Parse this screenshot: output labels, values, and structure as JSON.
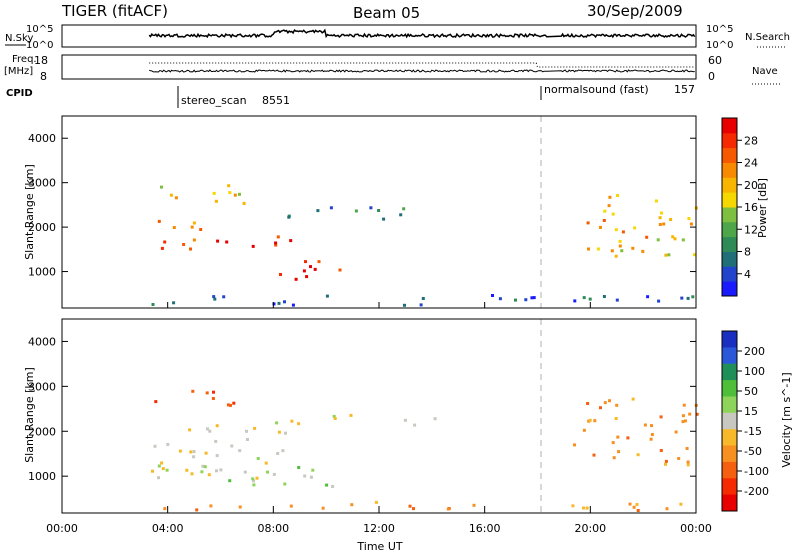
{
  "header": {
    "station": "TIGER (fitACF)",
    "beam": "Beam 05",
    "date": "30/Sep/2009"
  },
  "strip_nsky": {
    "left_label": "N.Sky",
    "right_label": "N.Search",
    "left_ticks": [
      "10^5",
      "10^0"
    ],
    "right_ticks": [
      "10^5",
      "10^0"
    ]
  },
  "strip_freq": {
    "left_label_1": "Freq.",
    "left_label_2": "[MHz]",
    "right_label": "Nave",
    "left_ticks": [
      "18",
      "8"
    ],
    "right_ticks": [
      "60",
      "0"
    ]
  },
  "cpid": {
    "label": "CPID",
    "programs": [
      {
        "name": "stereo_scan",
        "id": "8551",
        "start_hour": 3.3
      },
      {
        "name": "normalsound (fast)",
        "id": "157",
        "start_hour": 17.9
      }
    ]
  },
  "chart_data": [
    {
      "type": "heatmap",
      "quantity": "Power",
      "ylabel": "Slant Range [km]",
      "ylim": [
        180,
        4500
      ],
      "yticks": [
        1000,
        2000,
        3000,
        4000
      ],
      "xlim": [
        0,
        24
      ],
      "colorbar": {
        "label": "Power [dB]",
        "ticks": [
          "4",
          "8",
          "12",
          "16",
          "20",
          "24",
          "28"
        ],
        "colors": [
          "#1a1aff",
          "#2244cc",
          "#1f6e78",
          "#2e8b57",
          "#4ea54a",
          "#7fbf3f",
          "#f5d800",
          "#f7b500",
          "#f78a00",
          "#f55a00",
          "#f52a00",
          "#e80000"
        ]
      },
      "regions": [
        {
          "t0": 3.3,
          "t1": 5.2,
          "r0": 1300,
          "r1": 2200,
          "level": 0.75
        },
        {
          "t0": 5.0,
          "t1": 8.7,
          "r0": 1500,
          "r1": 1850,
          "level": 0.95
        },
        {
          "t0": 8.2,
          "t1": 10.6,
          "r0": 700,
          "r1": 1400,
          "level": 0.95
        },
        {
          "t0": 3.4,
          "t1": 7.0,
          "r0": 2400,
          "r1": 2900,
          "level": 0.6
        },
        {
          "t0": 8.5,
          "t1": 13.8,
          "r0": 2100,
          "r1": 2450,
          "level": 0.2
        },
        {
          "t0": 19.3,
          "t1": 24.0,
          "r0": 1300,
          "r1": 2700,
          "level": 0.6
        },
        {
          "t0": 3.3,
          "t1": 24.0,
          "r0": 200,
          "r1": 450,
          "level": 0.15
        }
      ]
    },
    {
      "type": "heatmap",
      "quantity": "Velocity",
      "ylabel": "Slant Range [km]",
      "xlabel": "Time UT",
      "ylim": [
        180,
        4500
      ],
      "yticks": [
        1000,
        2000,
        3000,
        4000
      ],
      "xlim": [
        0,
        24
      ],
      "xticks": [
        "00:00",
        "04:00",
        "08:00",
        "12:00",
        "16:00",
        "20:00",
        "00:00"
      ],
      "colorbar": {
        "label": "Velocity [m s^-1]",
        "ticks": [
          "200",
          "100",
          "50",
          "15",
          "-15",
          "-50",
          "-100",
          "-200"
        ],
        "colors": [
          "#1a2fbf",
          "#2a57d8",
          "#1f8f5a",
          "#4fbf3a",
          "#8fd45a",
          "#c8c8c0",
          "#f7b92a",
          "#f79020",
          "#f56010",
          "#f52a00",
          "#e80000"
        ]
      },
      "regions": [
        {
          "t0": 3.3,
          "t1": 8.5,
          "r0": 900,
          "r1": 2200,
          "level": -0.05
        },
        {
          "t0": 5.2,
          "t1": 10.5,
          "r0": 650,
          "r1": 1200,
          "level": 0.2
        },
        {
          "t0": 8.5,
          "t1": 14.2,
          "r0": 2100,
          "r1": 2350,
          "level": -0.05
        },
        {
          "t0": 3.4,
          "t1": 7.0,
          "r0": 2500,
          "r1": 2900,
          "level": -0.6
        },
        {
          "t0": 19.3,
          "t1": 24.0,
          "r0": 1200,
          "r1": 2700,
          "level": -0.4
        },
        {
          "t0": 3.3,
          "t1": 24.0,
          "r0": 200,
          "r1": 400,
          "level": -0.35
        }
      ]
    }
  ]
}
